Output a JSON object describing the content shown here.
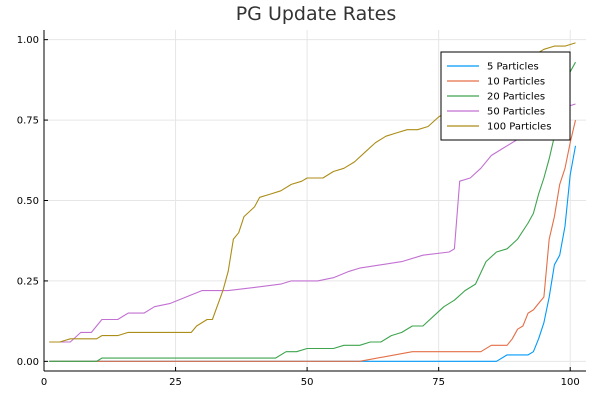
{
  "chart_data": {
    "type": "line",
    "title": "PG Update Rates",
    "xlabel": "",
    "ylabel": "",
    "xlim": [
      0,
      103
    ],
    "ylim": [
      -0.03,
      1.03
    ],
    "xticks": [
      0,
      25,
      50,
      75,
      100
    ],
    "yticks": [
      0.0,
      0.25,
      0.5,
      0.75,
      1.0
    ],
    "xtick_labels": [
      "0",
      "25",
      "50",
      "75",
      "100"
    ],
    "ytick_labels": [
      "0.00",
      "0.25",
      "0.50",
      "0.75",
      "1.00"
    ],
    "grid": true,
    "legend_position": "top-right",
    "series": [
      {
        "name": "5 Particles",
        "color": "#009AFA",
        "points": [
          [
            1,
            0.0
          ],
          [
            60,
            0.0
          ],
          [
            86,
            0.0
          ],
          [
            88,
            0.02
          ],
          [
            92,
            0.02
          ],
          [
            93,
            0.03
          ],
          [
            94,
            0.07
          ],
          [
            95,
            0.12
          ],
          [
            96,
            0.2
          ],
          [
            97,
            0.3
          ],
          [
            98,
            0.33
          ],
          [
            99,
            0.42
          ],
          [
            100,
            0.58
          ],
          [
            101,
            0.67
          ]
        ]
      },
      {
        "name": "10 Particles",
        "color": "#E36F47",
        "points": [
          [
            1,
            0.0
          ],
          [
            60,
            0.0
          ],
          [
            70,
            0.03
          ],
          [
            78,
            0.03
          ],
          [
            83,
            0.03
          ],
          [
            85,
            0.05
          ],
          [
            88,
            0.05
          ],
          [
            89,
            0.07
          ],
          [
            90,
            0.1
          ],
          [
            91,
            0.11
          ],
          [
            92,
            0.15
          ],
          [
            93,
            0.16
          ],
          [
            94,
            0.18
          ],
          [
            95,
            0.2
          ],
          [
            96,
            0.38
          ],
          [
            97,
            0.45
          ],
          [
            98,
            0.55
          ],
          [
            99,
            0.6
          ],
          [
            100,
            0.68
          ],
          [
            101,
            0.75
          ]
        ]
      },
      {
        "name": "20 Particles",
        "color": "#3EA44E",
        "points": [
          [
            1,
            0.0
          ],
          [
            10,
            0.0
          ],
          [
            11,
            0.01
          ],
          [
            35,
            0.01
          ],
          [
            44,
            0.01
          ],
          [
            46,
            0.03
          ],
          [
            48,
            0.03
          ],
          [
            50,
            0.04
          ],
          [
            55,
            0.04
          ],
          [
            57,
            0.05
          ],
          [
            60,
            0.05
          ],
          [
            62,
            0.06
          ],
          [
            64,
            0.06
          ],
          [
            66,
            0.08
          ],
          [
            68,
            0.09
          ],
          [
            70,
            0.11
          ],
          [
            72,
            0.11
          ],
          [
            74,
            0.14
          ],
          [
            76,
            0.17
          ],
          [
            78,
            0.19
          ],
          [
            80,
            0.22
          ],
          [
            82,
            0.24
          ],
          [
            84,
            0.31
          ],
          [
            86,
            0.34
          ],
          [
            88,
            0.35
          ],
          [
            90,
            0.38
          ],
          [
            92,
            0.43
          ],
          [
            93,
            0.46
          ],
          [
            94,
            0.52
          ],
          [
            95,
            0.57
          ],
          [
            96,
            0.63
          ],
          [
            97,
            0.7
          ],
          [
            98,
            0.78
          ],
          [
            99,
            0.86
          ],
          [
            100,
            0.9
          ],
          [
            101,
            0.93
          ]
        ]
      },
      {
        "name": "50 Particles",
        "color": "#C271D2",
        "points": [
          [
            1,
            0.06
          ],
          [
            5,
            0.06
          ],
          [
            7,
            0.09
          ],
          [
            9,
            0.09
          ],
          [
            11,
            0.13
          ],
          [
            14,
            0.13
          ],
          [
            16,
            0.15
          ],
          [
            19,
            0.15
          ],
          [
            21,
            0.17
          ],
          [
            24,
            0.18
          ],
          [
            27,
            0.2
          ],
          [
            30,
            0.22
          ],
          [
            35,
            0.22
          ],
          [
            40,
            0.23
          ],
          [
            45,
            0.24
          ],
          [
            47,
            0.25
          ],
          [
            52,
            0.25
          ],
          [
            55,
            0.26
          ],
          [
            58,
            0.28
          ],
          [
            60,
            0.29
          ],
          [
            64,
            0.3
          ],
          [
            68,
            0.31
          ],
          [
            72,
            0.33
          ],
          [
            77,
            0.34
          ],
          [
            78,
            0.35
          ],
          [
            79,
            0.56
          ],
          [
            81,
            0.57
          ],
          [
            83,
            0.6
          ],
          [
            85,
            0.64
          ],
          [
            87,
            0.66
          ],
          [
            90,
            0.69
          ],
          [
            93,
            0.73
          ],
          [
            96,
            0.76
          ],
          [
            99,
            0.79
          ],
          [
            101,
            0.8
          ]
        ]
      },
      {
        "name": "100 Particles",
        "color": "#AC8D18",
        "points": [
          [
            1,
            0.06
          ],
          [
            3,
            0.06
          ],
          [
            5,
            0.07
          ],
          [
            10,
            0.07
          ],
          [
            11,
            0.08
          ],
          [
            14,
            0.08
          ],
          [
            16,
            0.09
          ],
          [
            28,
            0.09
          ],
          [
            29,
            0.11
          ],
          [
            31,
            0.13
          ],
          [
            32,
            0.13
          ],
          [
            34,
            0.22
          ],
          [
            35,
            0.28
          ],
          [
            36,
            0.38
          ],
          [
            37,
            0.4
          ],
          [
            38,
            0.45
          ],
          [
            40,
            0.48
          ],
          [
            41,
            0.51
          ],
          [
            43,
            0.52
          ],
          [
            45,
            0.53
          ],
          [
            47,
            0.55
          ],
          [
            49,
            0.56
          ],
          [
            50,
            0.57
          ],
          [
            53,
            0.57
          ],
          [
            55,
            0.59
          ],
          [
            57,
            0.6
          ],
          [
            59,
            0.62
          ],
          [
            61,
            0.65
          ],
          [
            63,
            0.68
          ],
          [
            65,
            0.7
          ],
          [
            67,
            0.71
          ],
          [
            69,
            0.72
          ],
          [
            71,
            0.72
          ],
          [
            73,
            0.73
          ],
          [
            75,
            0.76
          ],
          [
            77,
            0.78
          ],
          [
            79,
            0.8
          ],
          [
            81,
            0.83
          ],
          [
            83,
            0.86
          ],
          [
            85,
            0.88
          ],
          [
            87,
            0.9
          ],
          [
            89,
            0.92
          ],
          [
            91,
            0.94
          ],
          [
            93,
            0.95
          ],
          [
            95,
            0.97
          ],
          [
            97,
            0.98
          ],
          [
            99,
            0.98
          ],
          [
            101,
            0.99
          ]
        ]
      }
    ]
  }
}
